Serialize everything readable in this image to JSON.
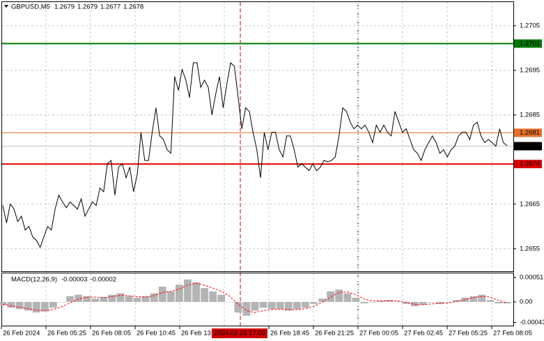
{
  "chart_data": [
    {
      "type": "line",
      "title": "GBPUSD,M5",
      "ohlc": [
        1.2679,
        1.2679,
        1.2677,
        1.2678
      ],
      "x_labels": [
        "26 Feb 2024",
        "26 Feb 05:25",
        "26 Feb 08:05",
        "26 Feb 10:45",
        "26 Feb 13:25",
        null,
        "26 Feb 18:45",
        "26 Feb 21:25",
        "27 Feb 00:05",
        "27 Feb 02:45",
        "27 Feb 05:25",
        "27 Feb 08:05"
      ],
      "cursor_label": "2024.02.26 17:00",
      "color": "#000000",
      "values": [
        1.26647,
        1.26608,
        1.2665,
        1.26639,
        1.26611,
        1.26623,
        1.26592,
        1.266,
        1.26577,
        1.26569,
        1.26553,
        1.26577,
        1.266,
        1.26592,
        1.26639,
        1.2667,
        1.26655,
        1.26642,
        1.26655,
        1.26647,
        1.26639,
        1.26662,
        1.26623,
        1.26639,
        1.26655,
        1.26647,
        1.26686,
        1.26678,
        1.26741,
        1.26748,
        1.2667,
        1.26733,
        1.26741,
        1.26709,
        1.26733,
        1.26678,
        1.26717,
        1.26811,
        1.26748,
        1.26748,
        1.26811,
        1.26866,
        1.26803,
        1.26795,
        1.26772,
        1.26764,
        1.26936,
        1.26905,
        1.26952,
        1.26928,
        1.26889,
        1.26967,
        1.26967,
        1.26912,
        1.26928,
        1.26912,
        1.2685,
        1.26897,
        1.26936,
        1.26866,
        1.2692,
        1.26967,
        1.26959,
        1.26889,
        1.26819,
        1.26866,
        1.26858,
        1.26811,
        1.26772,
        1.26709,
        1.26811,
        1.26772,
        1.26811,
        1.26811,
        1.26772,
        1.26756,
        1.26803,
        1.26803,
        1.26772,
        1.26733,
        1.26741,
        1.26733,
        1.26725,
        1.26741,
        1.26725,
        1.26733,
        1.26748,
        1.26745,
        1.26748,
        1.26756,
        1.26803,
        1.26866,
        1.26858,
        1.26834,
        1.26819,
        1.26827,
        1.26819,
        1.26827,
        1.26811,
        1.26788,
        1.26827,
        1.26811,
        1.26827,
        1.26811,
        1.26803,
        1.26858,
        1.26834,
        1.26811,
        1.26819,
        1.26795,
        1.26772,
        1.26764,
        1.26748,
        1.26772,
        1.26788,
        1.26803,
        1.26788,
        1.26764,
        1.26772,
        1.26756,
        1.26772,
        1.2678,
        1.26803,
        1.26811,
        1.26811,
        1.26795,
        1.26827,
        1.26834,
        1.26803,
        1.26788,
        1.26795,
        1.26788,
        1.2678,
        1.26819,
        1.26788,
        1.26781
      ],
      "ylim": [
        1.26498,
        1.27103
      ],
      "yticks": [
        1.2655,
        1.2665,
        1.2685,
        1.2695,
        1.2705
      ],
      "grid": true,
      "levels": [
        {
          "value": 1.2701,
          "color": "#007700"
        },
        {
          "value": 1.2681,
          "color": "#e8702a"
        },
        {
          "value": 1.2674,
          "color": "#dd0000"
        }
      ],
      "current": {
        "value": 1.2678,
        "color": "#c0c0c0"
      }
    },
    {
      "type": "macd",
      "title": "MACD(12,26,9)",
      "title_values": [
        -3e-05,
        -2e-05
      ],
      "bars": {
        "color": "#b4b4b4",
        "values": [
          -7e-05,
          -0.00012,
          -0.00015,
          -0.00018,
          -0.00022,
          -0.0002,
          -0.00012,
          0,
          0.00012,
          0.00015,
          0.00012,
          7e-05,
          0.0001,
          0.00015,
          0.00018,
          0.00012,
          9e-05,
          0.00012,
          0.00018,
          0.00032,
          0.00022,
          0.00036,
          0.00047,
          0.00041,
          0.00029,
          0.00022,
          0.00015,
          0,
          -0.00022,
          -0.00029,
          -0.00018,
          -0.00012,
          -0.00015,
          -0.00015,
          -0.00018,
          -0.00015,
          -0.00012,
          -4e-05,
          7e-05,
          0.00022,
          0.00026,
          0.00018,
          9e-05,
          -3e-05,
          0,
          3e-05,
          4e-05,
          1e-05,
          -4e-05,
          -9e-05,
          -6e-05,
          -1e-05,
          -4e-05,
          0,
          4e-05,
          9e-05,
          0.00012,
          0.00015,
          4e-05,
          -3e-05,
          -3e-05
        ]
      },
      "signal": {
        "color": "#ff0000",
        "values": [
          -5e-05,
          -8e-05,
          -0.00011,
          -0.00014,
          -0.00017,
          -0.00018,
          -0.00016,
          -0.0001,
          -2e-05,
          6e-05,
          0.0001,
          0.0001,
          9e-05,
          0.00011,
          0.00014,
          0.00013,
          0.00011,
          0.0001,
          0.00013,
          0.0002,
          0.00022,
          0.00027,
          0.00035,
          0.00039,
          0.00035,
          0.00029,
          0.00022,
          0.00012,
          -5e-05,
          -0.00018,
          -0.00022,
          -0.00018,
          -0.00016,
          -0.00015,
          -0.00016,
          -0.00016,
          -0.00014,
          -9e-05,
          -1e-05,
          0.0001,
          0.0002,
          0.00021,
          0.00015,
          6e-05,
          2e-05,
          2e-05,
          3e-05,
          2e-05,
          -1e-05,
          -5e-05,
          -6e-05,
          -4e-05,
          -3e-05,
          -2e-05,
          1e-05,
          5e-05,
          9e-05,
          0.00012,
          0.0001,
          3e-05,
          -2e-05
        ]
      },
      "ylim": [
        -0.000495,
        0.000597
      ],
      "yticks": [
        -0.00043,
        {
          "value": 0,
          "label": "0.00"
        },
        0.00051
      ]
    }
  ]
}
